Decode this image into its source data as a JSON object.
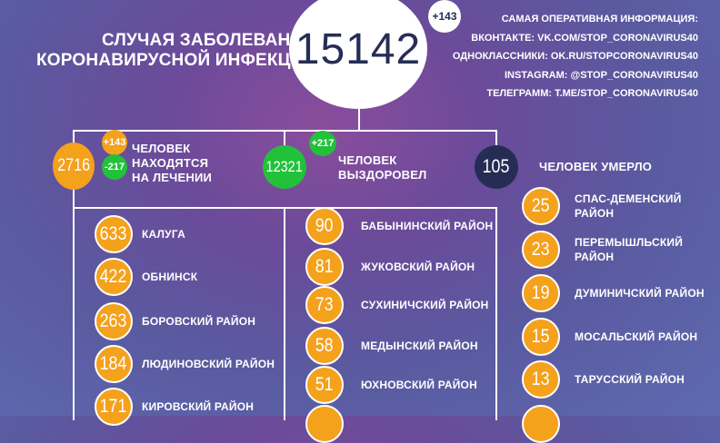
{
  "header": {
    "title_line1": "СЛУЧАЯ ЗАБОЛЕВАНИЯ",
    "title_line2": "КОРОНАВИРУСНОЙ ИНФЕКЦИЕЙ",
    "total": "15142",
    "total_delta": "+143"
  },
  "info": {
    "heading": "САМАЯ ОПЕРАТИВНАЯ ИНФОРМАЦИЯ:",
    "lines": [
      "ВКОНТАКТЕ: VK.COM/STOP_CORONAVIRUS40",
      "ОДНОКЛАССНИКИ: OK.RU/STOPCORONAVIRUS40",
      "INSTAGRAM: @STOP_CORONAVIRUS40",
      "ТЕЛЕГРАММ: T.ME/STOP_CORONAVIRUS40"
    ]
  },
  "summary": {
    "treatment": {
      "value": "2716",
      "plus": "+143",
      "minus": "-217",
      "label1": "ЧЕЛОВЕК",
      "label2": "НАХОДЯТСЯ",
      "label3": "НА ЛЕЧЕНИИ"
    },
    "recovered": {
      "value": "12321",
      "plus": "+217",
      "label1": "ЧЕЛОВЕК",
      "label2": "ВЫЗДОРОВЕЛ"
    },
    "died": {
      "value": "105",
      "label": "ЧЕЛОВЕК УМЕРЛО"
    }
  },
  "colors": {
    "orange": "#f4a11c",
    "green": "#22c13a",
    "dark": "#262d55"
  },
  "col1": [
    {
      "v": "633",
      "n": "КАЛУГА"
    },
    {
      "v": "422",
      "n": "ОБНИНСК"
    },
    {
      "v": "263",
      "n": "БОРОВСКИЙ РАЙОН"
    },
    {
      "v": "184",
      "n": "ЛЮДИНОВСКИЙ РАЙОН"
    },
    {
      "v": "171",
      "n": "КИРОВСКИЙ РАЙОН"
    }
  ],
  "col2": [
    {
      "v": "90",
      "n": "БАБЫНИНСКИЙ РАЙОН"
    },
    {
      "v": "81",
      "n": "ЖУКОВСКИЙ РАЙОН"
    },
    {
      "v": "73",
      "n": "СУХИНИЧСКИЙ РАЙОН"
    },
    {
      "v": "58",
      "n": "МЕДЫНСКИЙ РАЙОН"
    },
    {
      "v": "51",
      "n": "ЮХНОВСКИЙ РАЙОН"
    }
  ],
  "col3": [
    {
      "v": "25",
      "n1": "СПАС-ДЕМЕНСКИЙ",
      "n2": "РАЙОН"
    },
    {
      "v": "23",
      "n1": "ПЕРЕМЫШЛЬСКИЙ",
      "n2": "РАЙОН"
    },
    {
      "v": "19",
      "n1": "ДУМИНИЧСКИЙ РАЙОН",
      "n2": ""
    },
    {
      "v": "15",
      "n1": "МОСАЛЬСКИЙ РАЙОН",
      "n2": ""
    },
    {
      "v": "13",
      "n1": "ТАРУССКИЙ РАЙОН",
      "n2": ""
    }
  ]
}
